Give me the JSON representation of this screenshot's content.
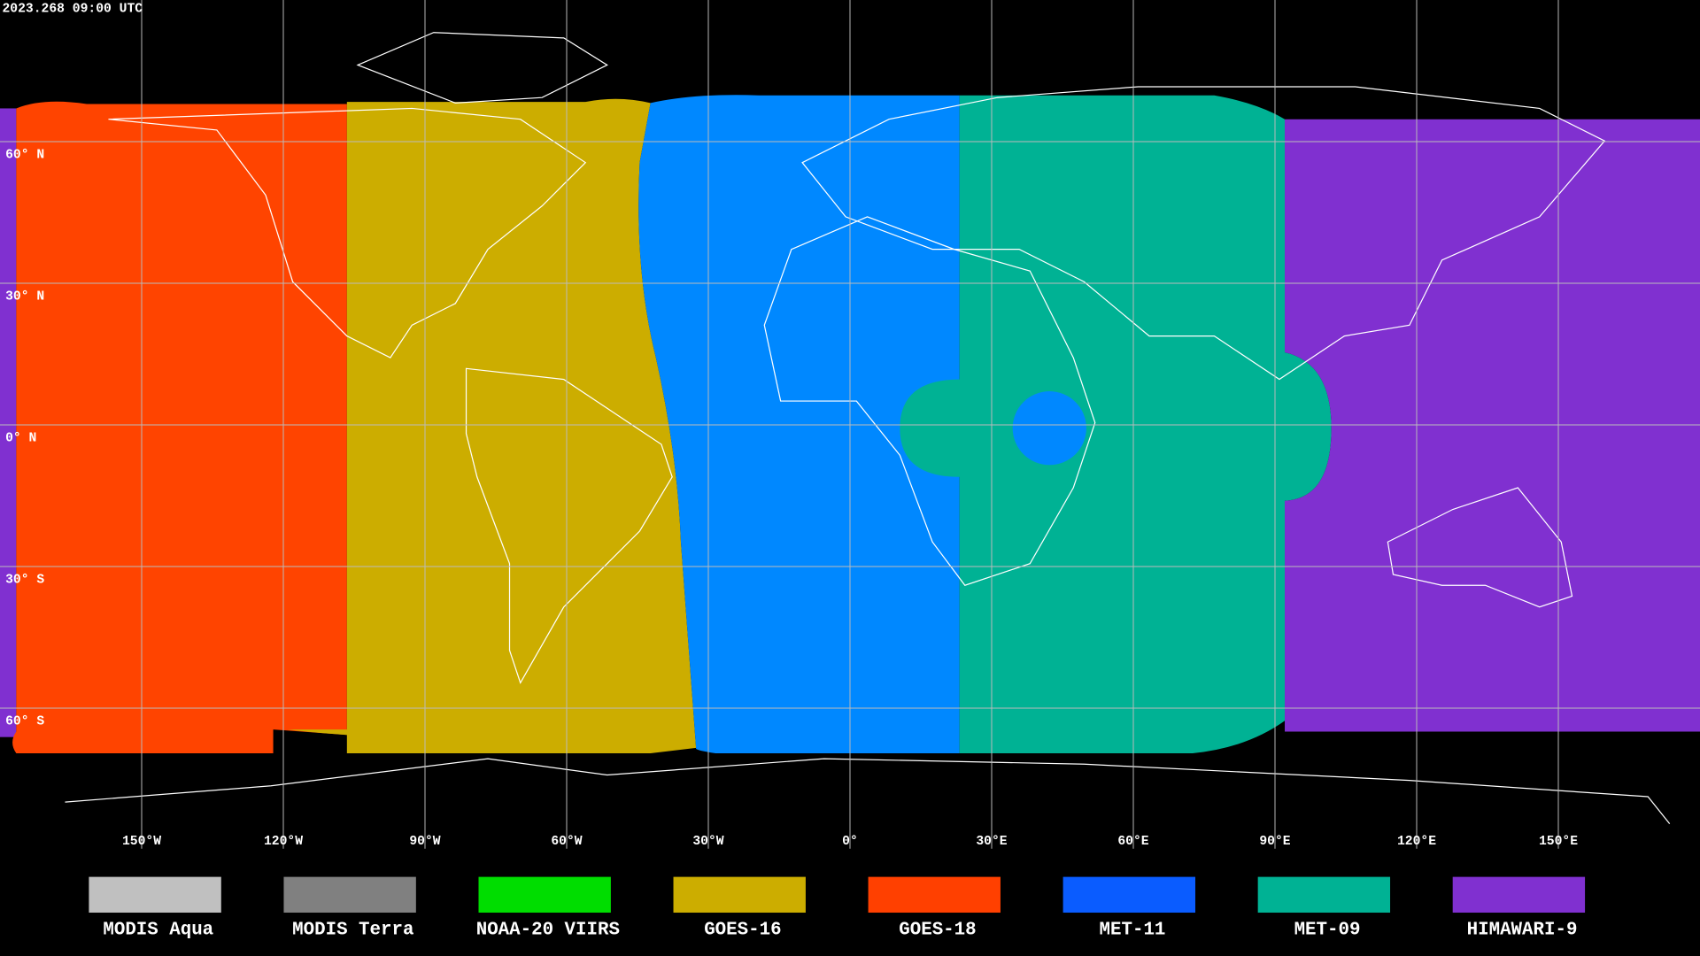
{
  "header": {
    "timestamp": "2023.268 09:00 UTC"
  },
  "map": {
    "xlim": [
      -180,
      180
    ],
    "ylim": [
      -90,
      90
    ],
    "lat_ticks": [
      {
        "value": 60,
        "label": "60° N"
      },
      {
        "value": 30,
        "label": "30° N"
      },
      {
        "value": 0,
        "label": "0° N"
      },
      {
        "value": -30,
        "label": "30° S"
      },
      {
        "value": -60,
        "label": "60° S"
      }
    ],
    "lon_ticks": [
      {
        "value": -150,
        "label": "150°W"
      },
      {
        "value": -120,
        "label": "120°W"
      },
      {
        "value": -90,
        "label": "90°W"
      },
      {
        "value": -60,
        "label": "60°W"
      },
      {
        "value": -30,
        "label": "30°W"
      },
      {
        "value": 0,
        "label": "0°"
      },
      {
        "value": 30,
        "label": "30°E"
      },
      {
        "value": 60,
        "label": "60°E"
      },
      {
        "value": 90,
        "label": "90°E"
      },
      {
        "value": 120,
        "label": "120°E"
      },
      {
        "value": 150,
        "label": "150°E"
      }
    ]
  },
  "legend": [
    {
      "name": "MODIS Aqua",
      "color": "#c0c0c0"
    },
    {
      "name": "MODIS Terra",
      "color": "#808080"
    },
    {
      "name": "NOAA-20 VIIRS",
      "color": "#00dd00"
    },
    {
      "name": "GOES-16",
      "color": "#ccad00"
    },
    {
      "name": "GOES-18",
      "color": "#ff4000"
    },
    {
      "name": "MET-11",
      "color": "#0a5cff"
    },
    {
      "name": "MET-09",
      "color": "#00b294"
    },
    {
      "name": "HIMAWARI-9",
      "color": "#8030d0"
    }
  ]
}
